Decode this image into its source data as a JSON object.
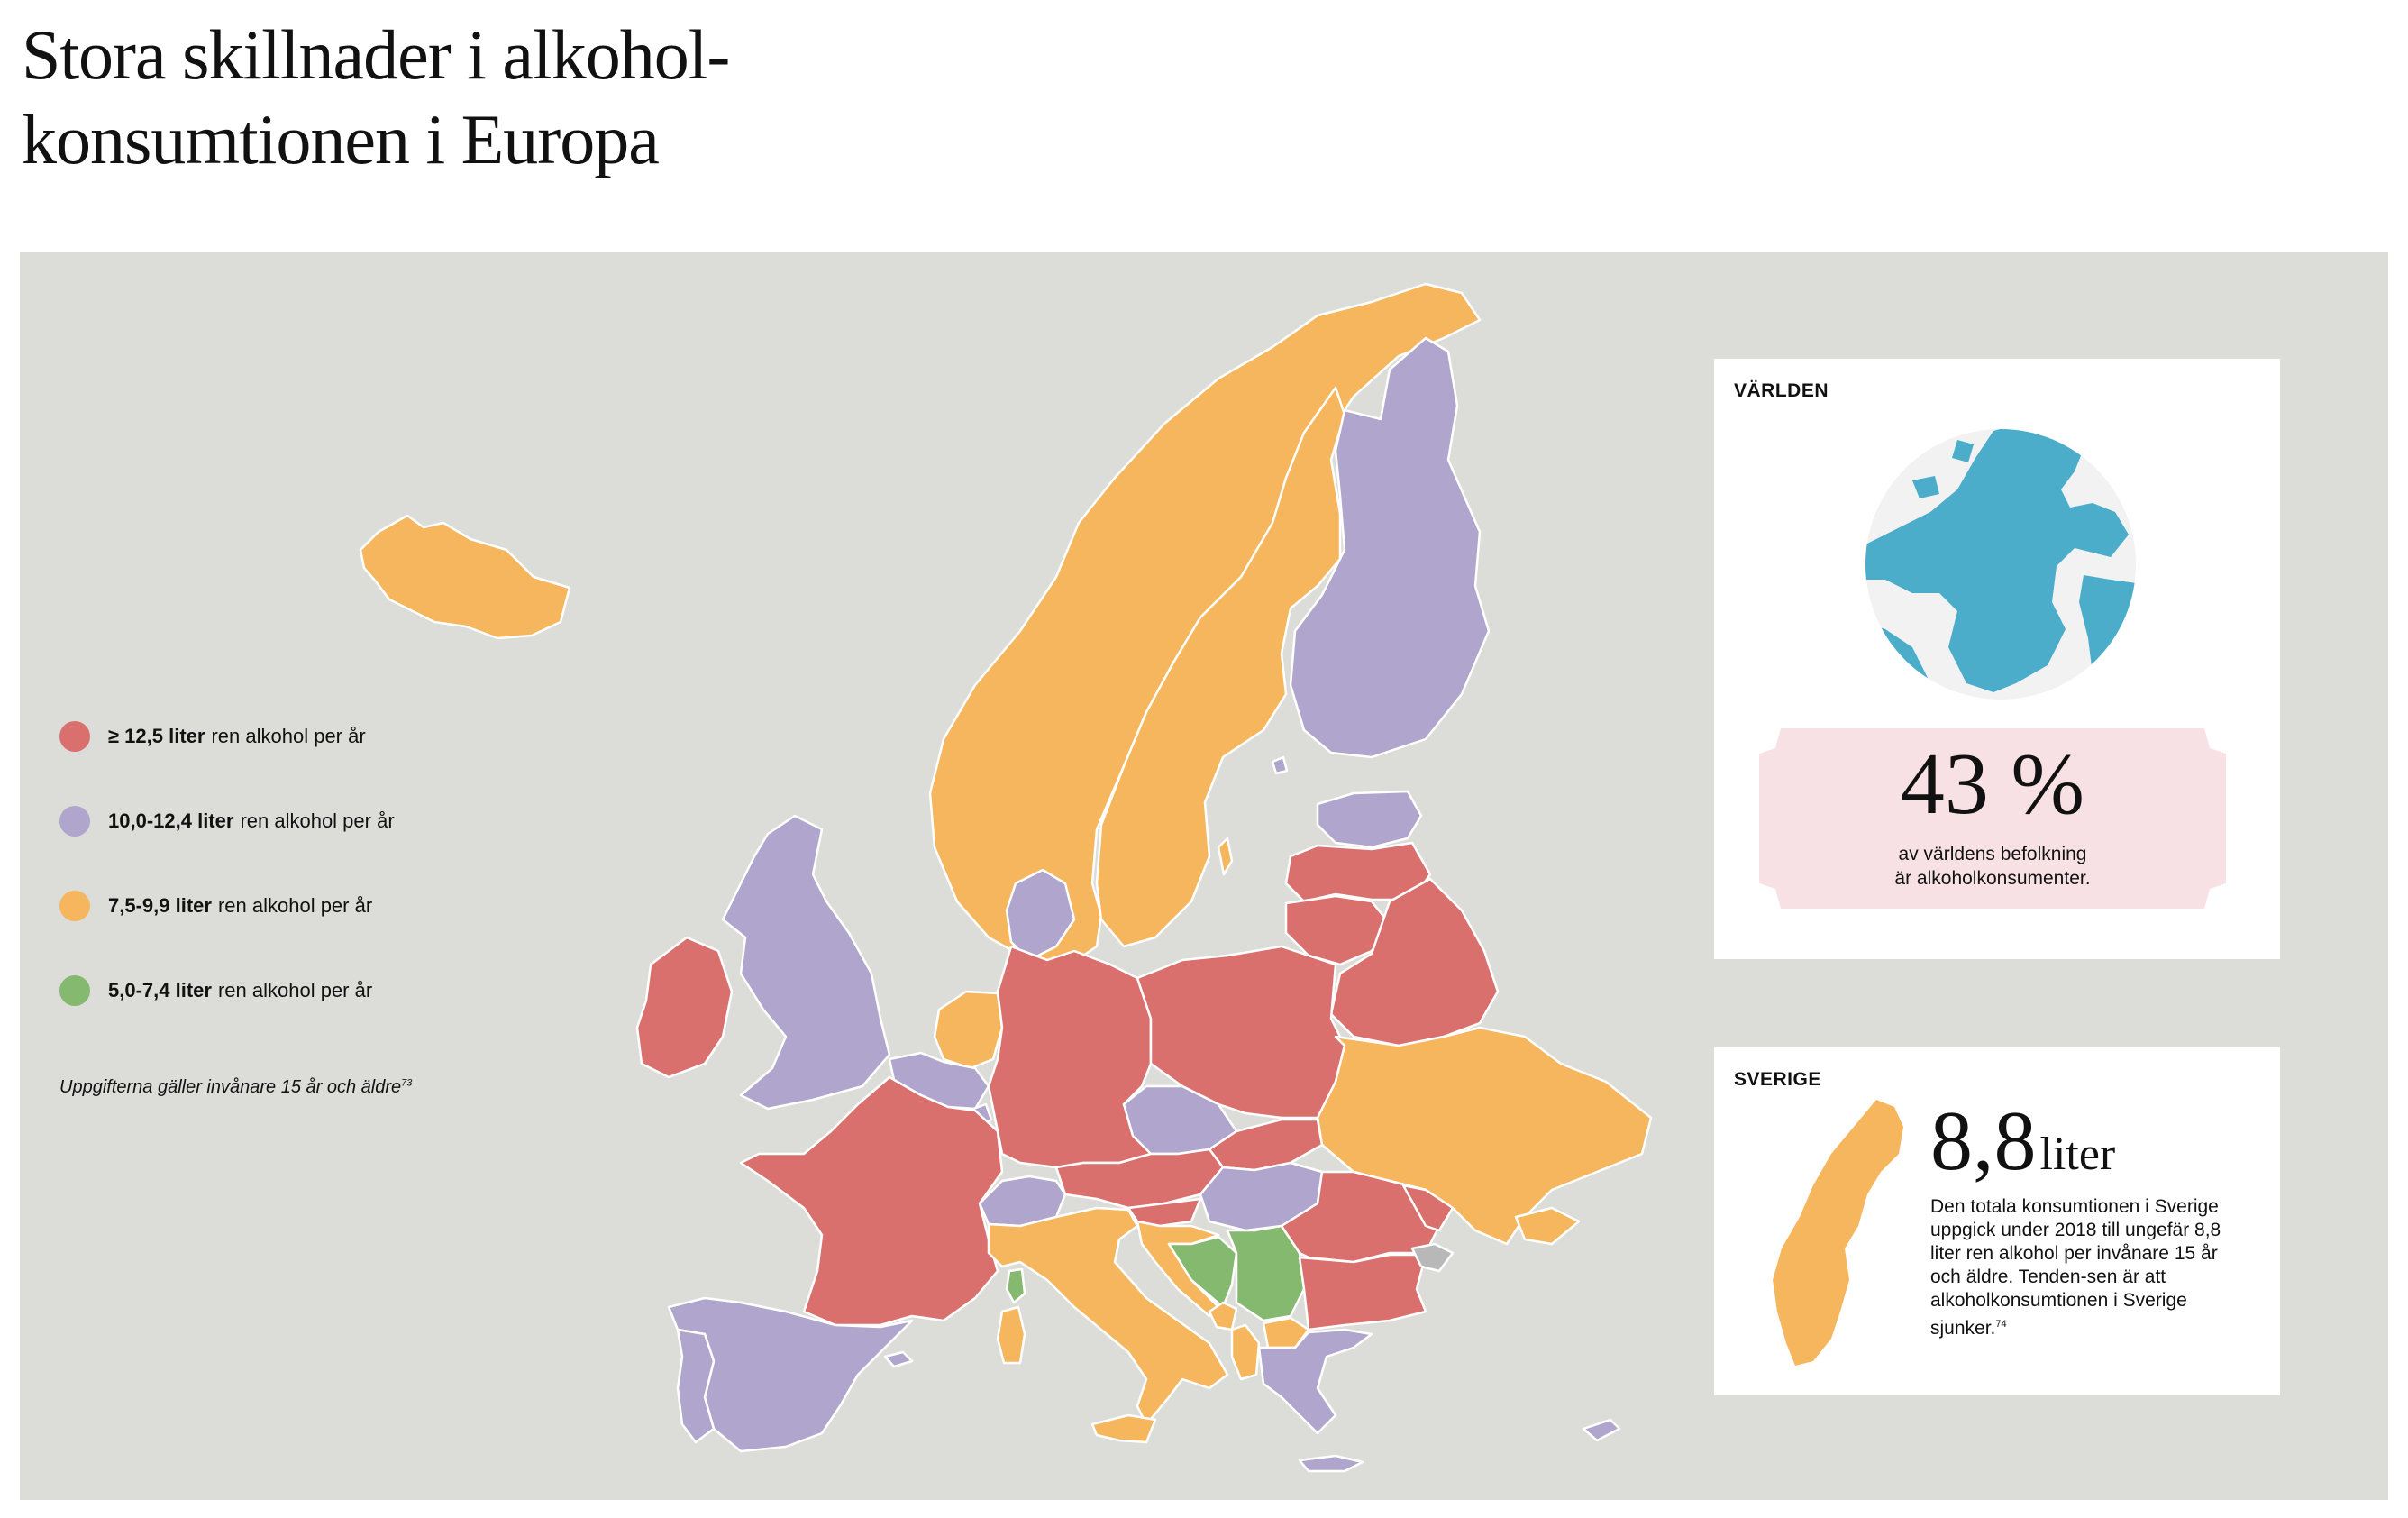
{
  "title": {
    "line1": "Stora skillnader i alkohol-",
    "line2": "konsumtionen i Europa"
  },
  "colors": {
    "background_panel": "#dcdcd8",
    "very_high": "#d9706d",
    "high": "#b0a6cd",
    "medium": "#f6b65e",
    "low": "#84b96f",
    "no_data": "#b8b8b8",
    "globe_ocean": "#4badc9",
    "globe_land": "#f2f2f2",
    "stat_band": "#f8e1e4"
  },
  "legend": {
    "items": [
      {
        "key": "very_high",
        "bold": "≥ 12,5 liter",
        "text": "ren alkohol per år",
        "color": "#d9706d"
      },
      {
        "key": "high",
        "bold": "10,0-12,4 liter",
        "text": "ren alkohol per år",
        "color": "#b0a6cd"
      },
      {
        "key": "medium",
        "bold": "7,5-9,9 liter",
        "text": "ren alkohol per år",
        "color": "#f6b65e"
      },
      {
        "key": "low",
        "bold": "5,0-7,4 liter",
        "text": "ren alkohol per år",
        "color": "#84b96f"
      }
    ],
    "note": "Uppgifterna gäller invånare 15 år och äldre",
    "note_ref": "73"
  },
  "world_card": {
    "label": "VÄRLDEN",
    "stat": "43 %",
    "text_line1": "av världens befolkning",
    "text_line2": "är alkoholkonsumenter."
  },
  "sweden_card": {
    "label": "SVERIGE",
    "value": "8,8",
    "unit": "liter",
    "text": "Den totala konsumtionen i Sverige uppgick under 2018 till ungefär 8,8 liter ren alkohol per invånare 15 år och äldre. Tenden-sen är att alkoholkonsumtionen i Sverige sjunker.",
    "text_ref": "74"
  }
}
